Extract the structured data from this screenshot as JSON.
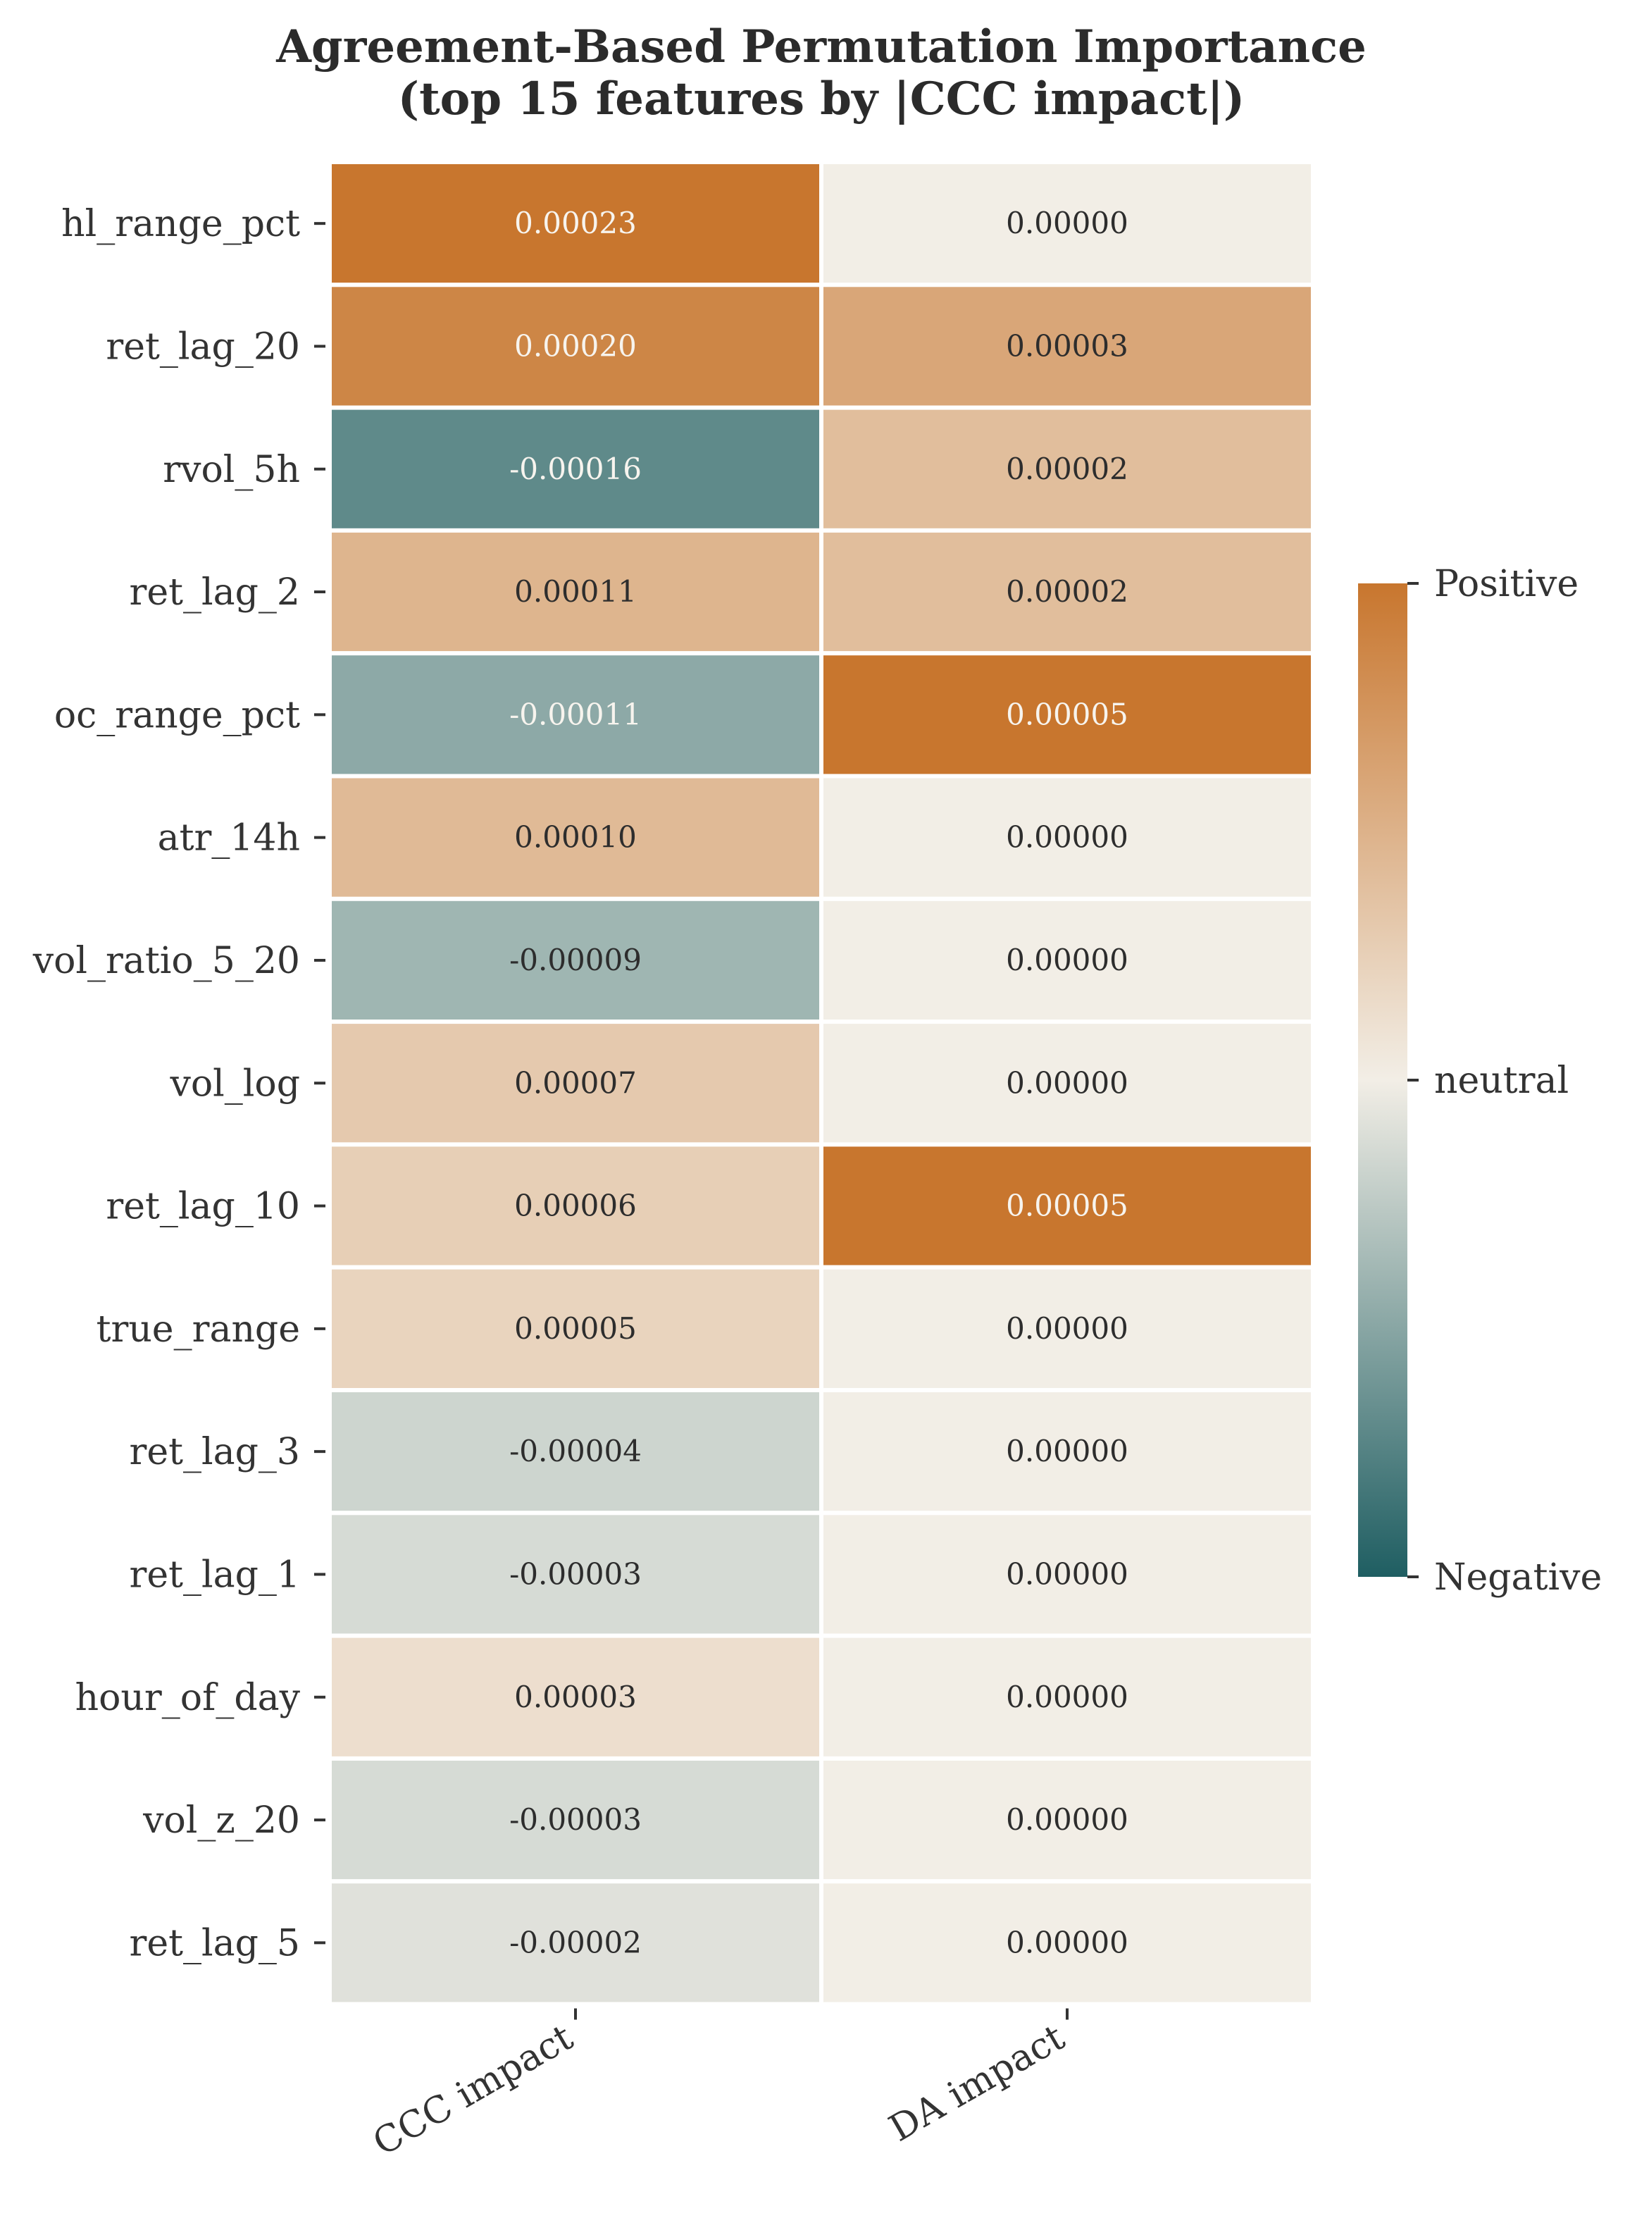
{
  "chart_data": {
    "type": "heatmap",
    "title": "Agreement-Based Permutation Importance",
    "subtitle": "(top 15 features by |CCC impact|)",
    "columns": [
      "CCC impact",
      "DA impact"
    ],
    "rows": [
      "hl_range_pct",
      "ret_lag_20",
      "rvol_5h",
      "ret_lag_2",
      "oc_range_pct",
      "atr_14h",
      "vol_ratio_5_20",
      "vol_log",
      "ret_lag_10",
      "true_range",
      "ret_lag_3",
      "ret_lag_1",
      "hour_of_day",
      "vol_z_20",
      "ret_lag_5"
    ],
    "values": [
      [
        0.00023,
        0.0
      ],
      [
        0.0002,
        3e-05
      ],
      [
        -0.00016,
        2e-05
      ],
      [
        0.00011,
        2e-05
      ],
      [
        -0.00011,
        5e-05
      ],
      [
        0.0001,
        0.0
      ],
      [
        -9e-05,
        0.0
      ],
      [
        7e-05,
        0.0
      ],
      [
        6e-05,
        5e-05
      ],
      [
        5e-05,
        0.0
      ],
      [
        -4e-05,
        0.0
      ],
      [
        -3e-05,
        0.0
      ],
      [
        3e-05,
        0.0
      ],
      [
        -3e-05,
        0.0
      ],
      [
        -2e-05,
        0.0
      ]
    ],
    "cell_labels": [
      [
        "0.00023",
        "0.00000"
      ],
      [
        "0.00020",
        "0.00003"
      ],
      [
        "-0.00016",
        "0.00002"
      ],
      [
        "0.00011",
        "0.00002"
      ],
      [
        "-0.00011",
        "0.00005"
      ],
      [
        "0.00010",
        "0.00000"
      ],
      [
        "-0.00009",
        "0.00000"
      ],
      [
        "0.00007",
        "0.00000"
      ],
      [
        "0.00006",
        "0.00005"
      ],
      [
        "0.00005",
        "0.00000"
      ],
      [
        "-0.00004",
        "0.00000"
      ],
      [
        "-0.00003",
        "0.00000"
      ],
      [
        "0.00003",
        "0.00000"
      ],
      [
        "-0.00003",
        "0.00000"
      ],
      [
        "-0.00002",
        "0.00000"
      ]
    ],
    "normalization": "per-column (max |value| in each column)",
    "colorbar": {
      "labels": [
        "Positive",
        "neutral",
        "Negative"
      ],
      "positive_color": "#c8762e",
      "neutral_color": "#f2eee6",
      "negative_color": "#1f5e62"
    },
    "grid": false
  }
}
